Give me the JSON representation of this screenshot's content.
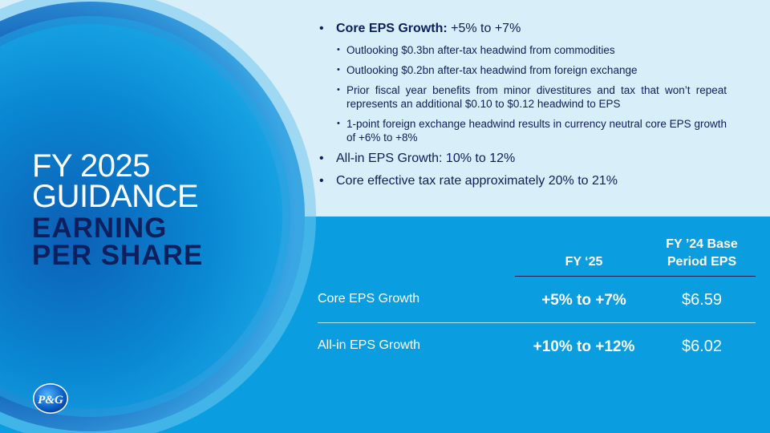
{
  "title": {
    "line1": "FY 2025",
    "line2": "GUIDANCE"
  },
  "subtitle": {
    "line1": "EARNING",
    "line2": "PER SHARE"
  },
  "bullets": {
    "core_eps": {
      "label": "Core EPS Growth:",
      "value": " +5% to +7%"
    },
    "sub": [
      "Outlooking $0.3bn after-tax headwind from commodities",
      "Outlooking $0.2bn after-tax headwind from foreign exchange",
      "Prior fiscal year benefits from minor divestitures and tax that won’t repeat represents an additional $0.10 to $0.12 headwind to EPS",
      "1-point foreign exchange headwind results in currency neutral core EPS growth of +6% to +8%"
    ],
    "all_in": "All-in EPS Growth: 10% to 12%",
    "tax_rate": "Core effective tax rate approximately 20% to 21%"
  },
  "table": {
    "headers": {
      "fy25": "FY ‘25",
      "fy24_line1": "FY ’24 Base",
      "fy24_line2": "Period EPS"
    },
    "rows": [
      {
        "label": "Core EPS Growth",
        "range": "+5%  to +7%",
        "base": "$6.59"
      },
      {
        "label": "All-in EPS Growth",
        "range": "+10%  to +12%",
        "base": "$6.02"
      }
    ]
  },
  "logo": {
    "text": "P&G"
  },
  "colors": {
    "navy": "#0d1f5c",
    "bright_blue": "#0a9ee0",
    "light_panel": "#d8eef8"
  }
}
